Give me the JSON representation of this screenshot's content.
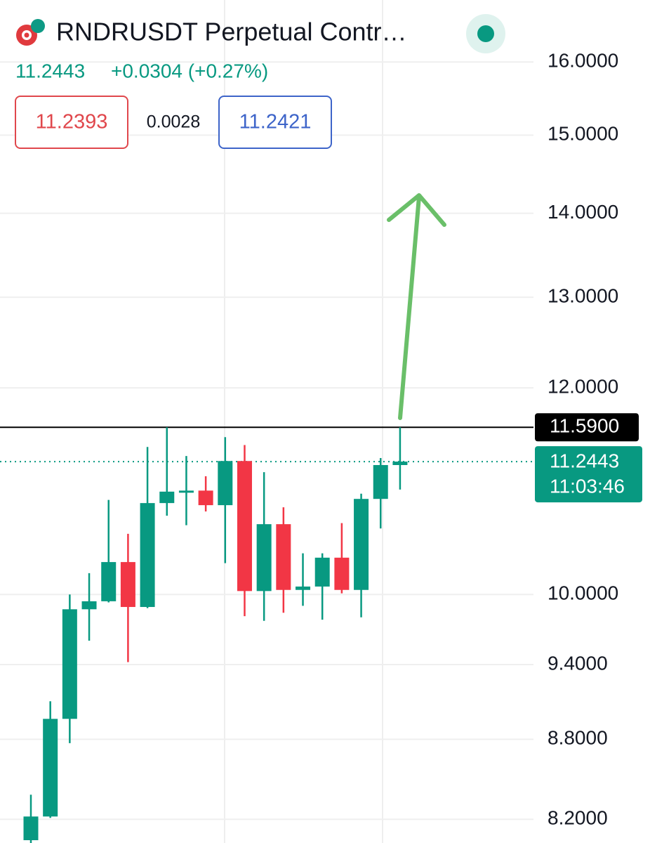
{
  "chart_data": {
    "type": "candlestick",
    "title": "RNDRUSDT Perpetual Contr…",
    "last_price": 11.2443,
    "change": "+0.0304 (+0.27%)",
    "bid": 11.2393,
    "spread": 0.0028,
    "ask": 11.2421,
    "countdown": "11:03:46",
    "hline": {
      "value": 11.59,
      "label": "11.5900"
    },
    "log": true,
    "grid": true,
    "up_color": "#089981",
    "down_color": "#f23645",
    "ylim": [
      8.03,
      16.9
    ],
    "yticks": [
      {
        "value": 8.2,
        "label": "8.2000"
      },
      {
        "value": 8.8,
        "label": "8.8000"
      },
      {
        "value": 9.4,
        "label": "9.4000"
      },
      {
        "value": 10,
        "label": "10.0000"
      },
      {
        "value": 12,
        "label": "12.0000"
      },
      {
        "value": 13,
        "label": "13.0000"
      },
      {
        "value": 14,
        "label": "14.0000"
      },
      {
        "value": 15,
        "label": "15.0000"
      },
      {
        "value": 16,
        "label": "16.0000"
      }
    ],
    "open": [
      8.05,
      8.22,
      8.96,
      9.87,
      9.94,
      10.29,
      9.89,
      10.84,
      10.95,
      10.96,
      10.82,
      11.25,
      10.03,
      10.64,
      10.04,
      10.07,
      10.33,
      10.04,
      10.88,
      11.21
    ],
    "high": [
      8.38,
      9.1,
      10.0,
      10.19,
      10.87,
      10.55,
      11.39,
      11.59,
      11.3,
      11.1,
      11.49,
      11.41,
      11.14,
      10.8,
      10.37,
      10.37,
      10.65,
      10.93,
      11.28,
      11.59
    ],
    "low": [
      8.0,
      8.21,
      8.77,
      9.6,
      9.93,
      9.42,
      9.88,
      10.72,
      10.63,
      10.76,
      10.28,
      9.81,
      9.77,
      9.84,
      9.9,
      9.78,
      10.01,
      9.8,
      10.6,
      10.97
    ],
    "close": [
      8.22,
      8.96,
      9.87,
      9.94,
      10.29,
      9.89,
      10.84,
      10.95,
      10.96,
      10.82,
      11.25,
      10.03,
      10.64,
      10.04,
      10.07,
      10.33,
      10.04,
      10.88,
      11.21,
      11.2443
    ]
  }
}
